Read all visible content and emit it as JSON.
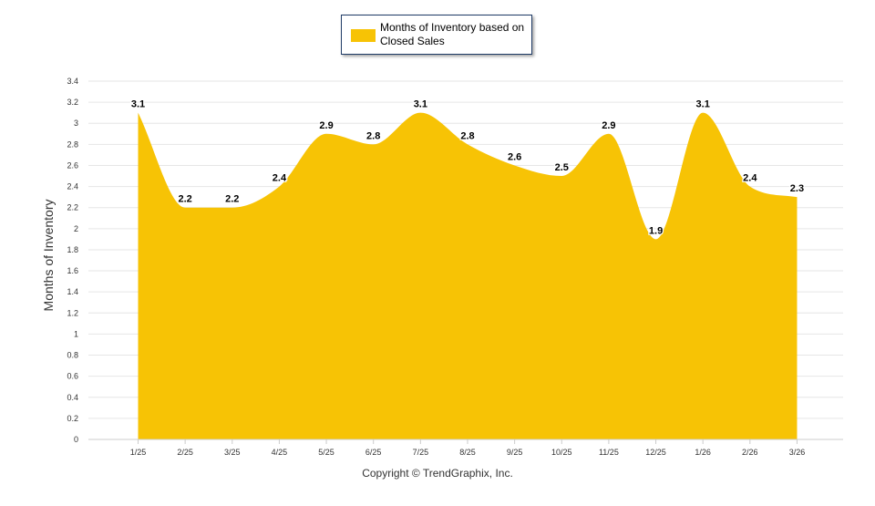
{
  "chart_data": {
    "type": "area",
    "categories": [
      "1/25",
      "2/25",
      "3/25",
      "4/25",
      "5/25",
      "6/25",
      "7/25",
      "8/25",
      "9/25",
      "10/25",
      "11/25",
      "12/25",
      "1/26",
      "2/26",
      "3/26"
    ],
    "series": [
      {
        "name": "Months of Inventory based on Closed Sales",
        "values": [
          3.1,
          2.2,
          2.2,
          2.4,
          2.9,
          2.8,
          3.1,
          2.8,
          2.6,
          2.5,
          2.9,
          1.9,
          3.1,
          2.4,
          2.3
        ],
        "color": "#f7c305"
      }
    ],
    "data_labels": [
      "3.1",
      "2.2",
      "2.2",
      "2.4",
      "2.9",
      "2.8",
      "3.1",
      "2.8",
      "2.6",
      "2.5",
      "2.9",
      "1.9",
      "3.1",
      "2.4",
      "2.3"
    ],
    "y_ticks": [
      "0",
      "0.2",
      "0.4",
      "0.6",
      "0.8",
      "1",
      "1.2",
      "1.4",
      "1.6",
      "1.8",
      "2",
      "2.2",
      "2.4",
      "2.6",
      "2.8",
      "3",
      "3.2",
      "3.4"
    ],
    "ylim": [
      0,
      3.4
    ],
    "ylabel": "Months of Inventory",
    "xlabel": "",
    "grid": true,
    "legend_position": "top-center"
  },
  "legend": {
    "label": "Months of Inventory based on Closed Sales",
    "color": "#f7c305"
  },
  "footer": {
    "copyright": "Copyright © TrendGraphix, Inc."
  }
}
